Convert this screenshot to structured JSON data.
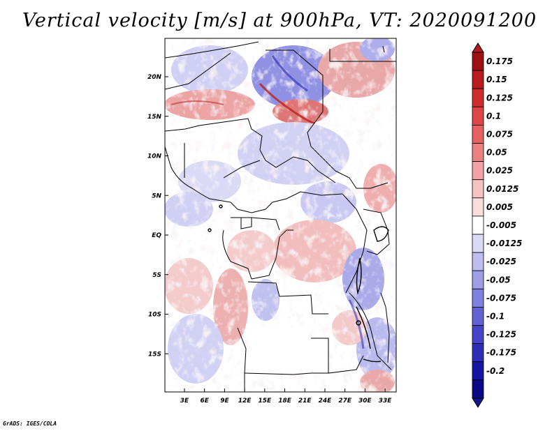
{
  "title": "Vertical velocity [m/s] at 900hPa, VT: 2020091200",
  "credit": "GrADS: IGES/COLA",
  "lat_ticks": [
    {
      "label": "20N",
      "value": 20
    },
    {
      "label": "15N",
      "value": 15
    },
    {
      "label": "10N",
      "value": 10
    },
    {
      "label": "5N",
      "value": 5
    },
    {
      "label": "EQ",
      "value": 0
    },
    {
      "label": "5S",
      "value": -5
    },
    {
      "label": "10S",
      "value": -10
    },
    {
      "label": "15S",
      "value": -15
    }
  ],
  "lon_ticks": [
    {
      "label": "3E",
      "value": 3
    },
    {
      "label": "6E",
      "value": 6
    },
    {
      "label": "9E",
      "value": 9
    },
    {
      "label": "12E",
      "value": 12
    },
    {
      "label": "15E",
      "value": 15
    },
    {
      "label": "18E",
      "value": 18
    },
    {
      "label": "21E",
      "value": 21
    },
    {
      "label": "24E",
      "value": 24
    },
    {
      "label": "27E",
      "value": 27
    },
    {
      "label": "30E",
      "value": 30
    },
    {
      "label": "33E",
      "value": 33
    }
  ],
  "colorbar": {
    "labels": [
      "0.175",
      "0.15",
      "0.125",
      "0.1",
      "0.075",
      "0.05",
      "0.025",
      "0.0125",
      "0.005",
      "-0.005",
      "-0.0125",
      "-0.025",
      "-0.05",
      "-0.075",
      "-0.1",
      "-0.125",
      "-0.175",
      "-0.2"
    ],
    "colors": [
      "#9c1111",
      "#b81c1c",
      "#cd2d2d",
      "#dc4646",
      "#e56262",
      "#eb8282",
      "#f1a3a3",
      "#f6c3c3",
      "#fadede",
      "#ffffff",
      "#dadaf7",
      "#bdbdf0",
      "#9f9fe8",
      "#8080df",
      "#6262d3",
      "#4545c6",
      "#2c2cb4",
      "#1616a0",
      "#0a0a84"
    ],
    "top_color": "#b01a1a",
    "bottom_color": "#14148f"
  }
}
